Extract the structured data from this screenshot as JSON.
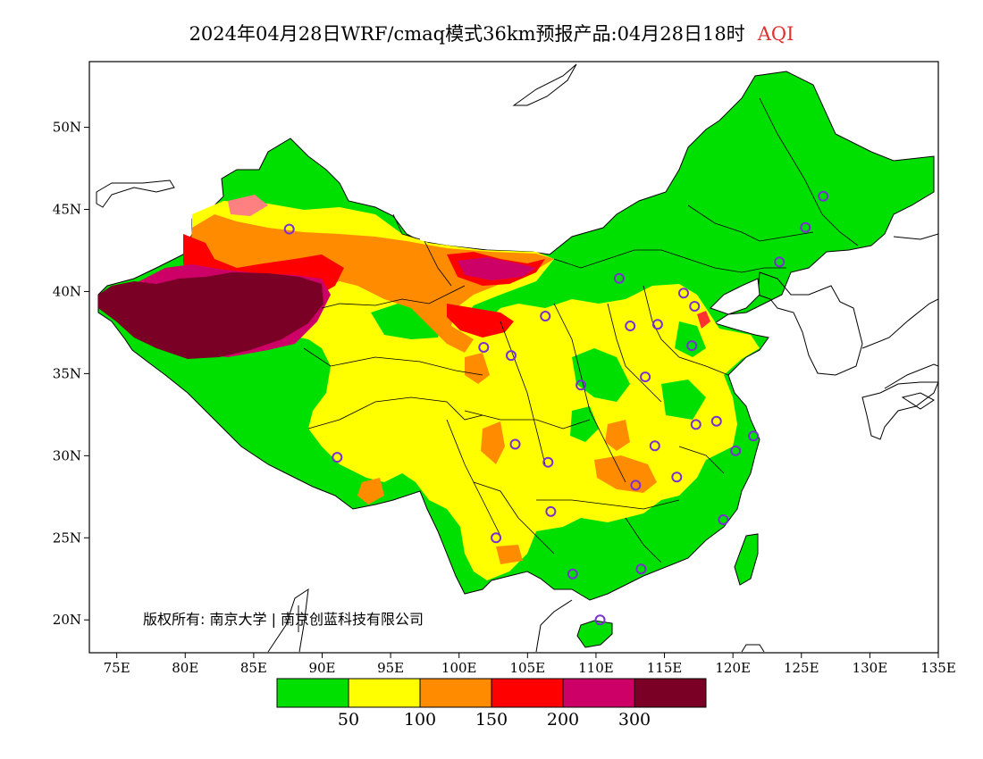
{
  "title": {
    "text": "2024年04月28日WRF/cmaq模式36km预报产品:04月28日18时",
    "variable": "AQI",
    "variable_color": "#e03030"
  },
  "map": {
    "lon_labels": [
      "75E",
      "80E",
      "85E",
      "90E",
      "95E",
      "100E",
      "105E",
      "110E",
      "115E",
      "120E",
      "125E",
      "130E",
      "135E"
    ],
    "lat_labels": [
      "50N",
      "45N",
      "40N",
      "35N",
      "30N",
      "25N",
      "20N"
    ],
    "lon_range": [
      73,
      135
    ],
    "lat_range": [
      18,
      54
    ],
    "copyright": "版权所有: 南京大学 | 南京创蓝科技有限公司"
  },
  "legend": {
    "colors": [
      "#00e000",
      "#ffff00",
      "#ff8c00",
      "#ff0000",
      "#cc0066",
      "#7a0026"
    ],
    "thresholds": [
      "50",
      "100",
      "150",
      "200",
      "300"
    ]
  },
  "stations": [
    {
      "lon": 87.6,
      "lat": 43.8
    },
    {
      "lon": 91.1,
      "lat": 29.9
    },
    {
      "lon": 101.8,
      "lat": 36.6
    },
    {
      "lon": 103.8,
      "lat": 36.1
    },
    {
      "lon": 106.3,
      "lat": 38.5
    },
    {
      "lon": 111.7,
      "lat": 40.8
    },
    {
      "lon": 116.4,
      "lat": 39.9
    },
    {
      "lon": 117.2,
      "lat": 39.1
    },
    {
      "lon": 114.5,
      "lat": 38.0
    },
    {
      "lon": 112.5,
      "lat": 37.9
    },
    {
      "lon": 117.0,
      "lat": 36.7
    },
    {
      "lon": 108.9,
      "lat": 34.3
    },
    {
      "lon": 113.6,
      "lat": 34.8
    },
    {
      "lon": 104.1,
      "lat": 30.7
    },
    {
      "lon": 106.5,
      "lat": 29.6
    },
    {
      "lon": 114.3,
      "lat": 30.6
    },
    {
      "lon": 117.3,
      "lat": 31.9
    },
    {
      "lon": 118.8,
      "lat": 32.1
    },
    {
      "lon": 120.2,
      "lat": 30.3
    },
    {
      "lon": 121.5,
      "lat": 31.2
    },
    {
      "lon": 112.9,
      "lat": 28.2
    },
    {
      "lon": 115.9,
      "lat": 28.7
    },
    {
      "lon": 119.3,
      "lat": 26.1
    },
    {
      "lon": 106.7,
      "lat": 26.6
    },
    {
      "lon": 102.7,
      "lat": 25.0
    },
    {
      "lon": 108.3,
      "lat": 22.8
    },
    {
      "lon": 113.3,
      "lat": 23.1
    },
    {
      "lon": 110.3,
      "lat": 20.0
    },
    {
      "lon": 123.4,
      "lat": 41.8
    },
    {
      "lon": 125.3,
      "lat": 43.9
    },
    {
      "lon": 126.6,
      "lat": 45.8
    }
  ]
}
